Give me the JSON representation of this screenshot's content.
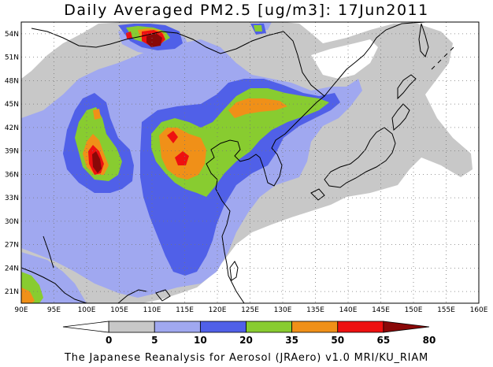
{
  "title": "Daily Averaged PM2.5 [ug/m3]: 17Jun2011",
  "footer": "The Japanese Reanalysis for Aerosol (JRAero) v1.0 MRI/KU_RIAM",
  "map": {
    "lon_range": [
      90,
      160
    ],
    "lat_range": [
      19.5,
      55.5
    ],
    "lon_ticks": [
      "90E",
      "95E",
      "100E",
      "105E",
      "110E",
      "115E",
      "120E",
      "125E",
      "130E",
      "135E",
      "140E",
      "145E",
      "150E",
      "155E",
      "160E"
    ],
    "lat_ticks": [
      "54N",
      "51N",
      "48N",
      "45N",
      "42N",
      "39N",
      "36N",
      "33N",
      "30N",
      "27N",
      "24N",
      "21N"
    ],
    "gridlines": "dotted"
  },
  "colorbar": {
    "thresholds": [
      "0",
      "5",
      "10",
      "20",
      "35",
      "50",
      "65",
      "80"
    ],
    "colors": [
      "#ffffff",
      "#c8c8c8",
      "#a0a8f0",
      "#5060e8",
      "#88cc30",
      "#f09018",
      "#ee1010",
      "#8a0808"
    ]
  }
}
